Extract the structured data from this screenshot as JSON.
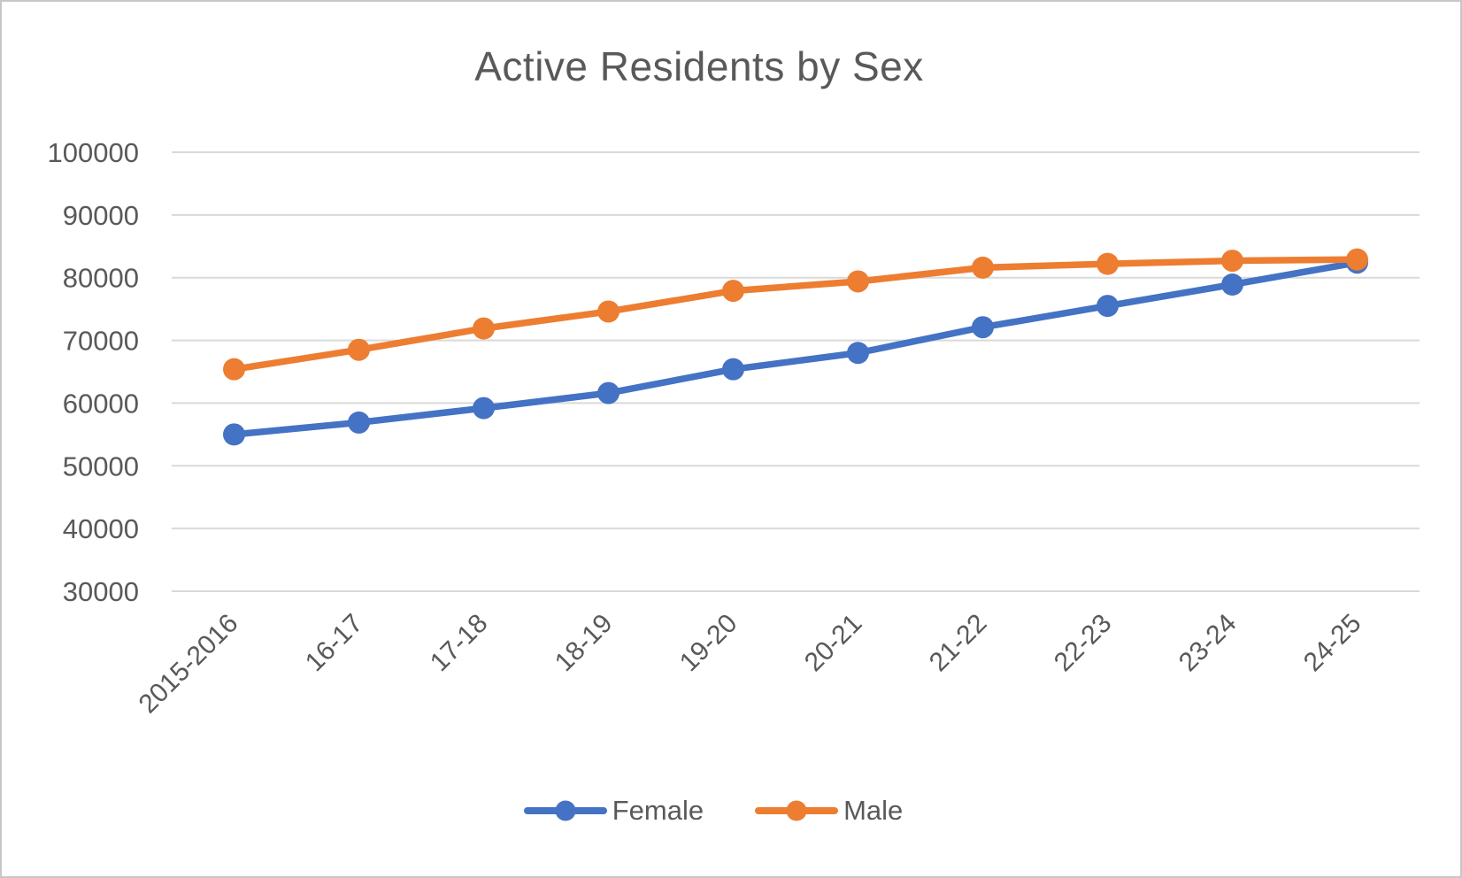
{
  "chart_data": {
    "type": "line",
    "title": "Active Residents by Sex",
    "categories": [
      "2015-2016",
      "16-17",
      "17-18",
      "18-19",
      "19-20",
      "20-21",
      "21-22",
      "22-23",
      "23-24",
      "24-25"
    ],
    "series": [
      {
        "name": "Female",
        "color": "#4472C4",
        "values": [
          55000,
          56900,
          59200,
          61600,
          65400,
          68000,
          72100,
          75500,
          78900,
          82400
        ]
      },
      {
        "name": "Male",
        "color": "#ED7D31",
        "values": [
          65400,
          68500,
          71900,
          74600,
          77900,
          79400,
          81600,
          82200,
          82700,
          82900
        ]
      }
    ],
    "ylim": [
      30000,
      100000
    ],
    "ytick_step": 10000,
    "ytick_labels": [
      "30000",
      "40000",
      "50000",
      "60000",
      "70000",
      "80000",
      "90000",
      "100000"
    ],
    "grid": true,
    "legend_position": "bottom",
    "marker": "circle",
    "colors": {
      "grid_line": "#D9D9D9",
      "axis_text": "#595959",
      "title_text": "#595959",
      "frame_border": "#C9C7C5",
      "background": "#FFFFFF"
    }
  }
}
